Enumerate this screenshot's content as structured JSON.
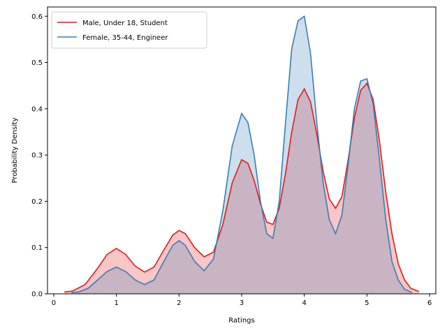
{
  "chart_data": {
    "type": "area",
    "xlabel": "Ratings",
    "ylabel": "Probability Density",
    "xlim": [
      -0.1,
      6.1
    ],
    "ylim": [
      0,
      0.62
    ],
    "xticks": [
      0,
      1,
      2,
      3,
      4,
      5,
      6
    ],
    "xtick_labels": [
      "0",
      "1",
      "2",
      "3",
      "4",
      "5",
      "6"
    ],
    "yticks": [
      0.0,
      0.1,
      0.2,
      0.3,
      0.4,
      0.5,
      0.6
    ],
    "ytick_labels": [
      "0.0",
      "0.1",
      "0.2",
      "0.3",
      "0.4",
      "0.5",
      "0.6"
    ],
    "grid": false,
    "legend_position": "top-left",
    "series": [
      {
        "name": "Male, Under 18, Student",
        "color": "#e41a1c",
        "fill": "#e41a1c",
        "fill_opacity": 0.25,
        "x": [
          0.17,
          0.3,
          0.5,
          0.7,
          0.85,
          1.0,
          1.15,
          1.3,
          1.45,
          1.6,
          1.75,
          1.9,
          2.0,
          2.1,
          2.25,
          2.4,
          2.55,
          2.7,
          2.85,
          3.0,
          3.1,
          3.2,
          3.3,
          3.4,
          3.5,
          3.6,
          3.7,
          3.8,
          3.9,
          4.0,
          4.1,
          4.2,
          4.3,
          4.4,
          4.5,
          4.6,
          4.7,
          4.8,
          4.9,
          5.0,
          5.1,
          5.2,
          5.3,
          5.4,
          5.5,
          5.6,
          5.7,
          5.83
        ],
        "y": [
          0.004,
          0.006,
          0.02,
          0.055,
          0.085,
          0.098,
          0.085,
          0.06,
          0.047,
          0.058,
          0.093,
          0.127,
          0.137,
          0.13,
          0.1,
          0.08,
          0.09,
          0.15,
          0.24,
          0.29,
          0.282,
          0.245,
          0.195,
          0.155,
          0.15,
          0.185,
          0.26,
          0.35,
          0.42,
          0.443,
          0.415,
          0.345,
          0.265,
          0.205,
          0.185,
          0.21,
          0.29,
          0.38,
          0.44,
          0.455,
          0.42,
          0.33,
          0.22,
          0.13,
          0.065,
          0.03,
          0.012,
          0.005
        ]
      },
      {
        "name": "Female, 35-44, Engineer",
        "color": "#377eb8",
        "fill": "#377eb8",
        "fill_opacity": 0.25,
        "x": [
          0.28,
          0.4,
          0.55,
          0.7,
          0.85,
          1.0,
          1.15,
          1.3,
          1.45,
          1.6,
          1.75,
          1.9,
          2.0,
          2.1,
          2.25,
          2.4,
          2.55,
          2.7,
          2.85,
          3.0,
          3.1,
          3.2,
          3.3,
          3.4,
          3.5,
          3.6,
          3.7,
          3.8,
          3.9,
          4.0,
          4.1,
          4.2,
          4.3,
          4.4,
          4.5,
          4.6,
          4.7,
          4.8,
          4.9,
          5.0,
          5.1,
          5.2,
          5.3,
          5.4,
          5.5,
          5.6,
          5.72
        ],
        "y": [
          0.003,
          0.004,
          0.012,
          0.03,
          0.048,
          0.058,
          0.048,
          0.03,
          0.02,
          0.03,
          0.068,
          0.105,
          0.115,
          0.105,
          0.07,
          0.05,
          0.075,
          0.18,
          0.32,
          0.39,
          0.37,
          0.3,
          0.2,
          0.13,
          0.12,
          0.2,
          0.37,
          0.53,
          0.59,
          0.6,
          0.52,
          0.37,
          0.24,
          0.16,
          0.13,
          0.17,
          0.28,
          0.4,
          0.46,
          0.465,
          0.41,
          0.29,
          0.16,
          0.07,
          0.03,
          0.01,
          0.003
        ]
      }
    ]
  }
}
